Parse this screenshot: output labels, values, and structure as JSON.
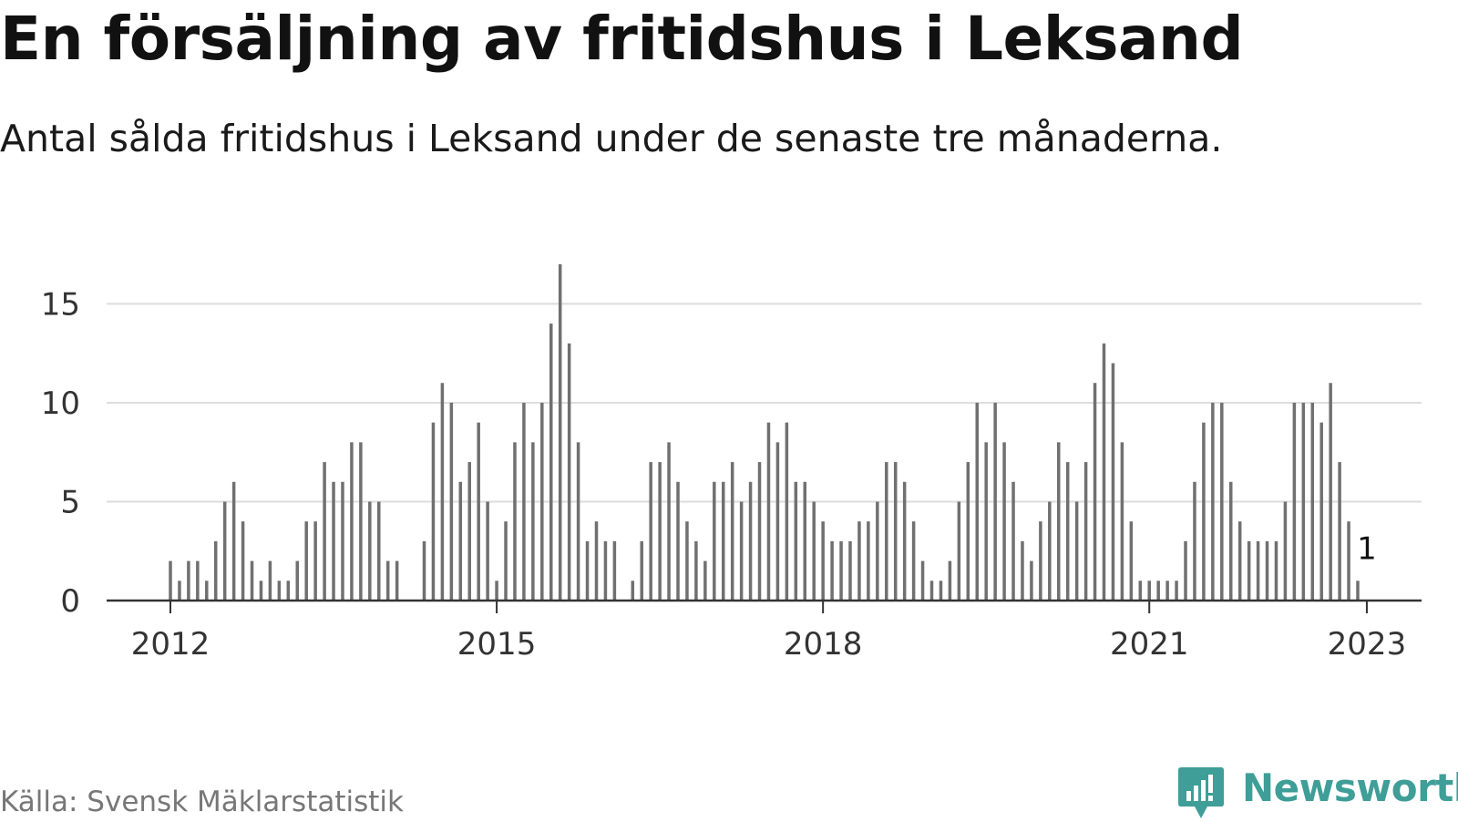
{
  "header": {
    "title": "En försäljning av fritidshus i Leksand",
    "subtitle": "Antal sålda fritidshus i Leksand under de senaste tre månaderna."
  },
  "footer": {
    "source": "Källa: Svensk Mäklarstatistik",
    "brand": "Newsworthy",
    "brand_icon": "chart-speech-bubble-icon"
  },
  "colors": {
    "bar": "#707070",
    "highlight": "#2a9d99",
    "grid": "#dddddd",
    "axis": "#333333",
    "brand": "#3f9e97"
  },
  "chart_data": {
    "type": "bar",
    "title": "",
    "xlabel": "",
    "ylabel": "",
    "ylim": [
      0,
      17
    ],
    "y_ticks": [
      0,
      5,
      10,
      15
    ],
    "x_ticks": [
      "2012",
      "2015",
      "2018",
      "2021",
      "2023"
    ],
    "grid": true,
    "legend": "none",
    "start": "2012-01",
    "end": "2023-01",
    "values": [
      2,
      1,
      2,
      2,
      1,
      3,
      5,
      6,
      4,
      2,
      1,
      2,
      1,
      1,
      2,
      4,
      4,
      7,
      6,
      6,
      8,
      8,
      5,
      5,
      2,
      2,
      null,
      null,
      3,
      9,
      11,
      10,
      6,
      7,
      9,
      5,
      1,
      4,
      8,
      10,
      8,
      10,
      14,
      17,
      13,
      8,
      3,
      4,
      3,
      3,
      null,
      1,
      3,
      7,
      7,
      8,
      6,
      4,
      3,
      2,
      6,
      6,
      7,
      5,
      6,
      7,
      9,
      8,
      9,
      6,
      6,
      5,
      4,
      3,
      3,
      3,
      4,
      4,
      5,
      7,
      7,
      6,
      4,
      2,
      1,
      1,
      2,
      5,
      7,
      10,
      8,
      10,
      8,
      6,
      3,
      2,
      4,
      5,
      8,
      7,
      5,
      7,
      11,
      13,
      12,
      8,
      4,
      1,
      1,
      1,
      1,
      1,
      3,
      6,
      9,
      10,
      10,
      6,
      4,
      3,
      3,
      3,
      3,
      5,
      10,
      10,
      10,
      9,
      11,
      7,
      4,
      1
    ],
    "highlight": {
      "date": "2023-01",
      "value": 1,
      "label": "1"
    }
  }
}
